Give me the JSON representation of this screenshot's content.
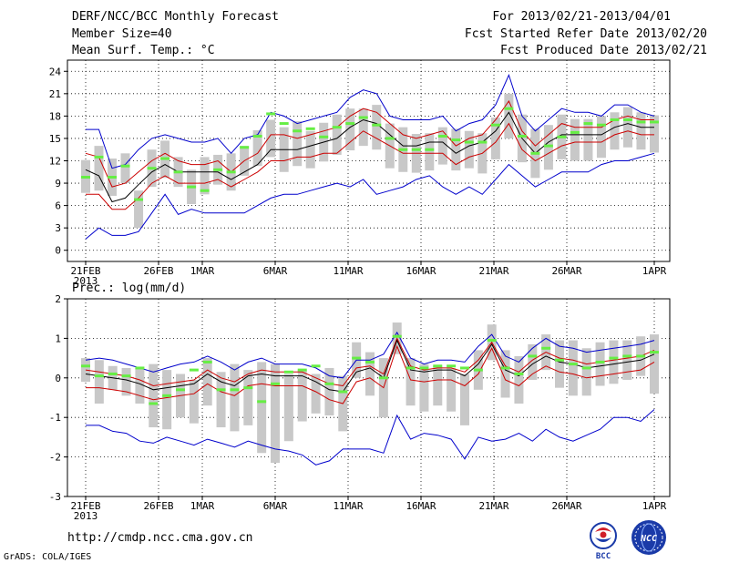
{
  "header": {
    "title": "DERF/NCC/BCC Monthly Forecast",
    "member_size": "Member Size=40",
    "variable": "Mean Surf. Temp.: °C",
    "period": "For 2013/02/21-2013/04/01",
    "refer_date": "Fcst Started Refer Date 2013/02/20",
    "produced_date": "Fcst Produced Date 2013/02/21"
  },
  "prec_label": "Prec.: log(mm/d)",
  "url": "http://cmdp.ncc.cma.gov.cn",
  "credit": "GrADS: COLA/IGES",
  "logos": {
    "bcc": "BCC",
    "ncc": "NCC"
  },
  "colors": {
    "grid": "#000000",
    "max_min": "#0000cc",
    "spread": "#cc0000",
    "mean": "#000000",
    "box": "#c8c8c8",
    "obs": "#66ee44"
  },
  "chart_data": [
    {
      "type": "line",
      "name": "Mean Surface Temperature ensemble forecast",
      "ylabel": "Mean Surf. Temp.: °C",
      "ylim": [
        -1.5,
        25.5
      ],
      "yticks": [
        0,
        3,
        6,
        9,
        12,
        15,
        18,
        21,
        24
      ],
      "x_start": 0,
      "x_end": 39,
      "xticks": [
        {
          "day": 0,
          "label": "21FEB",
          "label2": "2013"
        },
        {
          "day": 5,
          "label": "26FEB"
        },
        {
          "day": 8,
          "label": "1MAR"
        },
        {
          "day": 13,
          "label": "6MAR"
        },
        {
          "day": 18,
          "label": "11MAR"
        },
        {
          "day": 23,
          "label": "16MAR"
        },
        {
          "day": 28,
          "label": "21MAR"
        },
        {
          "day": 33,
          "label": "26MAR"
        },
        {
          "day": 39,
          "label": "1APR"
        }
      ],
      "series": [
        {
          "name": "max",
          "color": "#0000cc",
          "values": [
            16.2,
            16.2,
            11.0,
            11.5,
            13.5,
            15.0,
            15.5,
            15.0,
            14.5,
            14.5,
            15.0,
            13.0,
            15.0,
            15.5,
            18.5,
            18.0,
            17.0,
            17.5,
            18.0,
            18.5,
            20.5,
            21.5,
            21.0,
            18.0,
            17.5,
            17.5,
            17.5,
            18.0,
            16.0,
            17.0,
            17.5,
            19.5,
            23.5,
            18.0,
            16.0,
            17.5,
            19.0,
            18.5,
            18.5,
            18.0,
            19.5,
            19.5,
            18.5,
            18.0
          ]
        },
        {
          "name": "upper",
          "color": "#cc0000",
          "values": [
            13.0,
            12.5,
            8.5,
            9.0,
            10.5,
            12.0,
            13.0,
            12.0,
            11.5,
            11.5,
            12.0,
            10.5,
            12.0,
            13.0,
            15.5,
            15.5,
            15.0,
            15.5,
            16.0,
            16.5,
            18.0,
            19.0,
            18.5,
            17.0,
            15.5,
            15.0,
            15.5,
            16.0,
            14.0,
            15.0,
            15.5,
            17.5,
            20.0,
            16.0,
            14.0,
            15.5,
            17.0,
            16.5,
            16.5,
            16.5,
            17.5,
            18.0,
            17.5,
            17.5
          ]
        },
        {
          "name": "mean",
          "color": "#000000",
          "values": [
            10.8,
            10.0,
            6.5,
            7.0,
            8.8,
            10.5,
            11.5,
            10.5,
            10.5,
            10.5,
            10.5,
            9.5,
            10.5,
            11.5,
            13.5,
            13.5,
            13.5,
            14.0,
            14.5,
            15.0,
            16.5,
            17.5,
            17.0,
            15.5,
            14.0,
            14.0,
            14.5,
            14.5,
            13.0,
            14.0,
            14.5,
            16.0,
            18.5,
            15.0,
            13.0,
            14.5,
            15.5,
            15.5,
            15.5,
            15.5,
            16.5,
            17.0,
            16.5,
            16.5
          ]
        },
        {
          "name": "lower",
          "color": "#cc0000",
          "values": [
            7.5,
            7.5,
            5.5,
            5.5,
            7.0,
            9.0,
            10.0,
            9.0,
            9.0,
            9.0,
            9.5,
            8.5,
            9.5,
            10.5,
            12.0,
            12.0,
            12.5,
            12.5,
            13.0,
            13.0,
            14.5,
            16.0,
            15.0,
            14.0,
            13.0,
            13.0,
            13.0,
            13.0,
            11.5,
            12.5,
            13.0,
            14.5,
            17.0,
            13.5,
            12.0,
            13.0,
            14.0,
            14.5,
            14.5,
            14.5,
            15.5,
            16.0,
            15.5,
            15.5
          ]
        },
        {
          "name": "min",
          "color": "#0000cc",
          "values": [
            1.5,
            3.0,
            2.0,
            2.0,
            2.5,
            5.0,
            7.5,
            4.8,
            5.5,
            5.0,
            5.0,
            5.0,
            5.0,
            6.0,
            7.0,
            7.5,
            7.5,
            8.0,
            8.5,
            9.0,
            8.5,
            9.5,
            7.5,
            8.0,
            8.5,
            9.5,
            10.0,
            8.5,
            7.5,
            8.5,
            7.5,
            9.5,
            11.5,
            10.0,
            8.5,
            9.5,
            10.5,
            10.5,
            10.5,
            11.5,
            12.0,
            12.0,
            12.5,
            13.0
          ]
        }
      ],
      "boxes": {
        "center": [
          9.9,
          11.0,
          9.8,
          11.0,
          5.5,
          11.0,
          12.2,
          10.5,
          8.5,
          10.0,
          10.8,
          10.5,
          12.0,
          13.7,
          15.0,
          13.5,
          14.3,
          13.5,
          14.5,
          15.5,
          16.2,
          16.5,
          16.5,
          14.0,
          13.5,
          13.0,
          13.2,
          14.0,
          13.5,
          13.5,
          13.0,
          15.0,
          18.0,
          15.0,
          13.0,
          13.8,
          15.2,
          14.8,
          14.8,
          15.2,
          16.0,
          16.5,
          16.0,
          15.6
        ],
        "half": [
          2.2,
          3.0,
          2.5,
          2.0,
          2.5,
          2.5,
          2.5,
          2.0,
          2.3,
          2.5,
          2.0,
          2.5,
          2.0,
          2.4,
          2.5,
          3.0,
          3.0,
          2.5,
          2.6,
          2.7,
          2.8,
          2.5,
          3.0,
          3.0,
          3.0,
          2.6,
          2.5,
          2.5,
          2.8,
          2.5,
          2.7,
          2.8,
          3.0,
          3.2,
          3.3,
          3.0,
          3.0,
          2.8,
          2.8,
          2.8,
          2.5,
          2.7,
          2.5,
          2.5
        ]
      },
      "observations": [
        9.8,
        12.5,
        9.8,
        11.3,
        6.8,
        11.0,
        12.3,
        10.5,
        8.5,
        8.0,
        10.8,
        10.5,
        13.8,
        15.3,
        18.3,
        17.0,
        16.0,
        16.3,
        15.2,
        16.5,
        17.0,
        17.8,
        16.8,
        15.0,
        13.5,
        13.5,
        13.5,
        15.3,
        14.8,
        14.5,
        14.5,
        16.8,
        19.0,
        15.3,
        13.0,
        14.0,
        15.2,
        15.8,
        17.0,
        16.8,
        17.5,
        17.5,
        17.2,
        17.2
      ]
    },
    {
      "type": "line",
      "name": "Precipitation ensemble forecast",
      "ylabel": "Prec.: log(mm/d)",
      "ylim": [
        -3,
        2
      ],
      "yticks": [
        -3,
        -2,
        -1,
        0,
        1,
        2
      ],
      "x_start": 0,
      "x_end": 39,
      "xticks": [
        {
          "day": 0,
          "label": "21FEB",
          "label2": "2013"
        },
        {
          "day": 5,
          "label": "26FEB"
        },
        {
          "day": 8,
          "label": "1MAR"
        },
        {
          "day": 13,
          "label": "6MAR"
        },
        {
          "day": 18,
          "label": "11MAR"
        },
        {
          "day": 23,
          "label": "16MAR"
        },
        {
          "day": 28,
          "label": "21MAR"
        },
        {
          "day": 33,
          "label": "26MAR"
        },
        {
          "day": 39,
          "label": "1APR"
        }
      ],
      "series": [
        {
          "name": "max",
          "color": "#0000cc",
          "values": [
            0.45,
            0.5,
            0.45,
            0.35,
            0.25,
            0.15,
            0.25,
            0.35,
            0.4,
            0.55,
            0.4,
            0.2,
            0.4,
            0.5,
            0.35,
            0.35,
            0.35,
            0.25,
            0.05,
            0.0,
            0.45,
            0.45,
            0.6,
            1.15,
            0.5,
            0.35,
            0.45,
            0.45,
            0.4,
            0.8,
            1.1,
            0.55,
            0.4,
            0.75,
            1.0,
            0.8,
            0.75,
            0.65,
            0.7,
            0.75,
            0.8,
            0.85,
            0.95
          ]
        },
        {
          "name": "upper",
          "color": "#cc0000",
          "values": [
            0.2,
            0.15,
            0.1,
            0.05,
            -0.05,
            -0.2,
            -0.15,
            -0.1,
            -0.05,
            0.2,
            0.0,
            -0.1,
            0.1,
            0.2,
            0.15,
            0.15,
            0.15,
            0.0,
            -0.15,
            -0.2,
            0.25,
            0.3,
            0.1,
            1.0,
            0.3,
            0.2,
            0.25,
            0.25,
            0.15,
            0.45,
            0.9,
            0.3,
            0.15,
            0.45,
            0.65,
            0.5,
            0.45,
            0.35,
            0.4,
            0.45,
            0.5,
            0.55,
            0.7
          ]
        },
        {
          "name": "mean",
          "color": "#000000",
          "values": [
            0.1,
            0.05,
            0.0,
            -0.05,
            -0.15,
            -0.3,
            -0.25,
            -0.2,
            -0.15,
            0.1,
            -0.1,
            -0.2,
            0.05,
            0.1,
            0.05,
            0.05,
            0.05,
            -0.1,
            -0.3,
            -0.35,
            0.15,
            0.25,
            0.0,
            0.95,
            0.2,
            0.15,
            0.2,
            0.2,
            0.05,
            0.35,
            0.85,
            0.2,
            0.05,
            0.35,
            0.55,
            0.4,
            0.35,
            0.25,
            0.3,
            0.35,
            0.4,
            0.45,
            0.6
          ]
        },
        {
          "name": "lower",
          "color": "#cc0000",
          "values": [
            -0.25,
            -0.25,
            -0.3,
            -0.35,
            -0.45,
            -0.55,
            -0.5,
            -0.45,
            -0.4,
            -0.15,
            -0.35,
            -0.45,
            -0.2,
            -0.15,
            -0.2,
            -0.2,
            -0.2,
            -0.35,
            -0.55,
            -0.65,
            -0.1,
            0.0,
            -0.25,
            0.8,
            -0.05,
            -0.1,
            -0.05,
            -0.05,
            -0.2,
            0.1,
            0.75,
            -0.05,
            -0.2,
            0.1,
            0.3,
            0.15,
            0.1,
            0.0,
            0.05,
            0.1,
            0.15,
            0.2,
            0.4
          ]
        },
        {
          "name": "min",
          "color": "#0000cc",
          "values": [
            -1.2,
            -1.2,
            -1.35,
            -1.4,
            -1.6,
            -1.65,
            -1.5,
            -1.6,
            -1.7,
            -1.55,
            -1.65,
            -1.75,
            -1.6,
            -1.7,
            -1.8,
            -1.85,
            -1.95,
            -2.2,
            -2.1,
            -1.8,
            -1.8,
            -1.8,
            -1.9,
            -0.95,
            -1.55,
            -1.4,
            -1.45,
            -1.55,
            -2.05,
            -1.5,
            -1.6,
            -1.55,
            -1.4,
            -1.6,
            -1.3,
            -1.5,
            -1.6,
            -1.45,
            -1.3,
            -1.0,
            -1.0,
            -1.1,
            -0.8
          ]
        }
      ],
      "boxes": {
        "center": [
          0.2,
          -0.1,
          0.0,
          -0.1,
          -0.2,
          -0.45,
          -0.55,
          -0.45,
          -0.6,
          -0.1,
          -0.55,
          -0.5,
          -0.5,
          -0.75,
          -0.9,
          -0.75,
          -0.45,
          -0.4,
          -0.35,
          -0.65,
          0.45,
          0.1,
          -0.25,
          1.0,
          -0.1,
          -0.25,
          -0.2,
          -0.3,
          -0.55,
          0.2,
          0.9,
          0.1,
          -0.05,
          0.4,
          0.65,
          0.35,
          0.25,
          0.15,
          0.35,
          0.4,
          0.45,
          0.55,
          0.35
        ],
        "half": [
          0.3,
          0.55,
          0.3,
          0.35,
          0.45,
          0.8,
          0.75,
          0.55,
          0.55,
          0.6,
          0.7,
          0.85,
          0.7,
          1.15,
          1.25,
          0.85,
          0.65,
          0.5,
          0.6,
          0.7,
          0.45,
          0.55,
          0.75,
          0.4,
          0.6,
          0.6,
          0.5,
          0.55,
          0.65,
          0.5,
          0.45,
          0.6,
          0.6,
          0.45,
          0.45,
          0.6,
          0.7,
          0.6,
          0.55,
          0.55,
          0.5,
          0.5,
          0.75
        ]
      },
      "observations": [
        0.3,
        0.05,
        0.1,
        0.05,
        0.25,
        -0.65,
        -0.45,
        -0.3,
        0.2,
        0.4,
        -0.3,
        -0.3,
        -0.25,
        -0.6,
        -0.15,
        0.15,
        0.2,
        0.3,
        -0.15,
        -0.35,
        0.5,
        0.4,
        0.0,
        1.05,
        0.25,
        0.25,
        0.3,
        0.3,
        0.25,
        0.2,
        0.95,
        0.25,
        0.1,
        0.55,
        0.75,
        0.45,
        0.35,
        0.25,
        0.4,
        0.5,
        0.55,
        0.55,
        0.65
      ]
    }
  ]
}
